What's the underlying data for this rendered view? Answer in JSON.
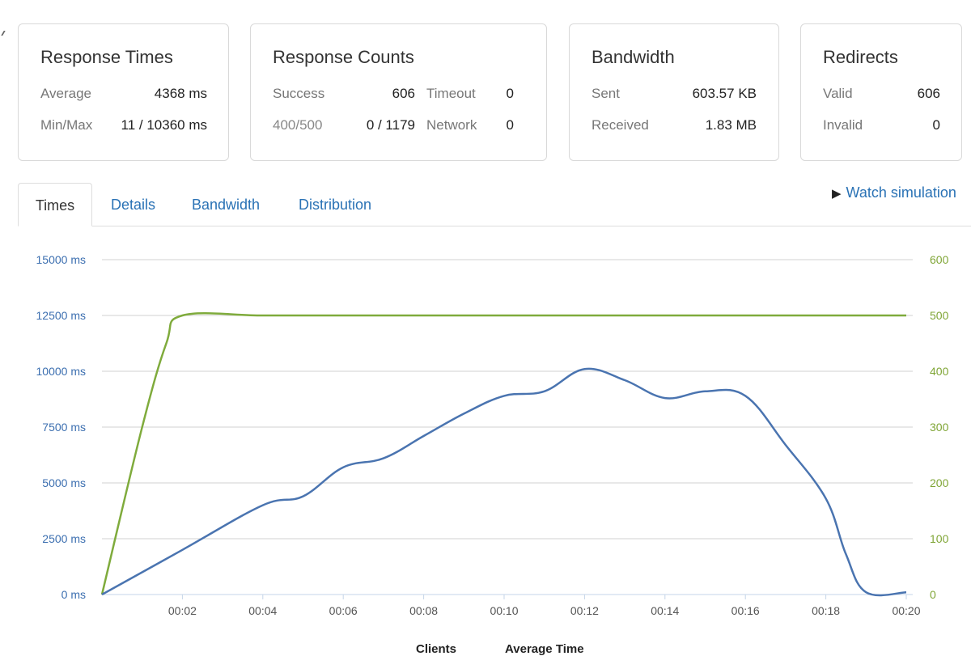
{
  "cards": {
    "response_times": {
      "title": "Response Times",
      "average_label": "Average",
      "average_value": "4368 ms",
      "minmax_label": "Min/Max",
      "minmax_value": "11 / 10360 ms"
    },
    "response_counts": {
      "title": "Response Counts",
      "success_label": "Success",
      "success_value": "606",
      "timeout_label": "Timeout",
      "timeout_value": "0",
      "errors_label": "400/500",
      "errors_value": "0 / 1179",
      "network_label": "Network",
      "network_value": "0"
    },
    "bandwidth": {
      "title": "Bandwidth",
      "sent_label": "Sent",
      "sent_value": "603.57 KB",
      "received_label": "Received",
      "received_value": "1.83 MB"
    },
    "redirects": {
      "title": "Redirects",
      "valid_label": "Valid",
      "valid_value": "606",
      "invalid_label": "Invalid",
      "invalid_value": "0"
    }
  },
  "tabs": [
    {
      "label": "Times",
      "active": true
    },
    {
      "label": "Details",
      "active": false
    },
    {
      "label": "Bandwidth",
      "active": false
    },
    {
      "label": "Distribution",
      "active": false
    }
  ],
  "watch_simulation": "Watch simulation",
  "colors": {
    "response_time_line": "#4a74b0",
    "clients_line": "#7fab3c",
    "link": "#2a72b5"
  },
  "chart_data": {
    "type": "line",
    "x_ticks": [
      "00:02",
      "00:04",
      "00:06",
      "00:08",
      "00:10",
      "00:12",
      "00:14",
      "00:16",
      "00:18",
      "00:20"
    ],
    "y_left_ticks": [
      "0 ms",
      "2500 ms",
      "5000 ms",
      "7500 ms",
      "10000 ms",
      "12500 ms",
      "15000 ms"
    ],
    "y_right_ticks": [
      "0",
      "100",
      "200",
      "300",
      "400",
      "500",
      "600"
    ],
    "ylim_left": [
      0,
      15000
    ],
    "ylim_right": [
      0,
      600
    ],
    "xlim": [
      0,
      20
    ],
    "grid": true,
    "legend_position": "bottom-center",
    "series": [
      {
        "name": "Clients",
        "axis": "right",
        "x": [
          0,
          1,
          1.6,
          2,
          4,
          6,
          8,
          10,
          12,
          14,
          16,
          18,
          20
        ],
        "values": [
          0,
          300,
          450,
          500,
          500,
          500,
          500,
          500,
          500,
          500,
          500,
          500,
          500
        ]
      },
      {
        "name": "Average Time",
        "axis": "left",
        "x": [
          0,
          2,
          4,
          5,
          6,
          7,
          8,
          9,
          10,
          11,
          12,
          13,
          14,
          15,
          16,
          17,
          18,
          18.5,
          19,
          20
        ],
        "values": [
          0,
          2000,
          4000,
          4400,
          5700,
          6100,
          7100,
          8100,
          8900,
          9100,
          10100,
          9600,
          8800,
          9100,
          8900,
          6700,
          4300,
          1800,
          100,
          100
        ]
      }
    ]
  }
}
